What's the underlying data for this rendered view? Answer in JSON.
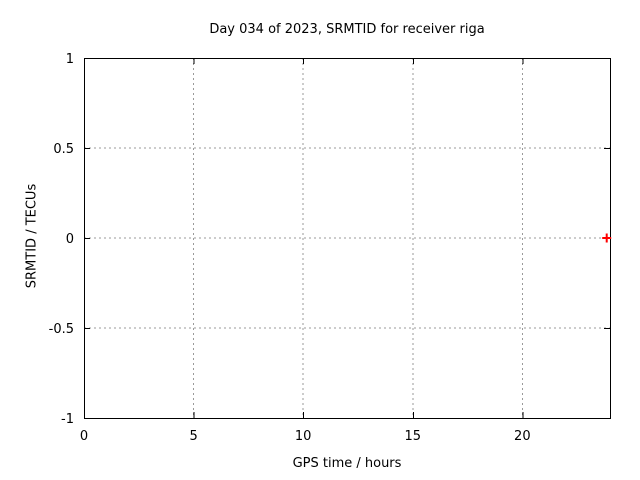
{
  "page": {
    "background": "#ffffff"
  },
  "chart_data": {
    "type": "scatter",
    "title": "Day 034 of 2023, SRMTID for receiver riga",
    "xlabel": "GPS time / hours",
    "ylabel": "SRMTID / TECUs",
    "xlim": [
      0,
      24
    ],
    "ylim": [
      -1,
      1
    ],
    "xticks": [
      0,
      5,
      10,
      15,
      20
    ],
    "yticks": [
      -1,
      -0.5,
      0,
      0.5,
      1
    ],
    "grid": true,
    "grid_style": "dotted",
    "grid_color": "#9a9a9a",
    "border_color": "#000000",
    "legend_position": "none",
    "series": [
      {
        "name": "SRMTID",
        "marker": "plus",
        "color": "#ff0000",
        "points": [
          {
            "x": 23.85,
            "y": 0
          }
        ]
      }
    ]
  }
}
